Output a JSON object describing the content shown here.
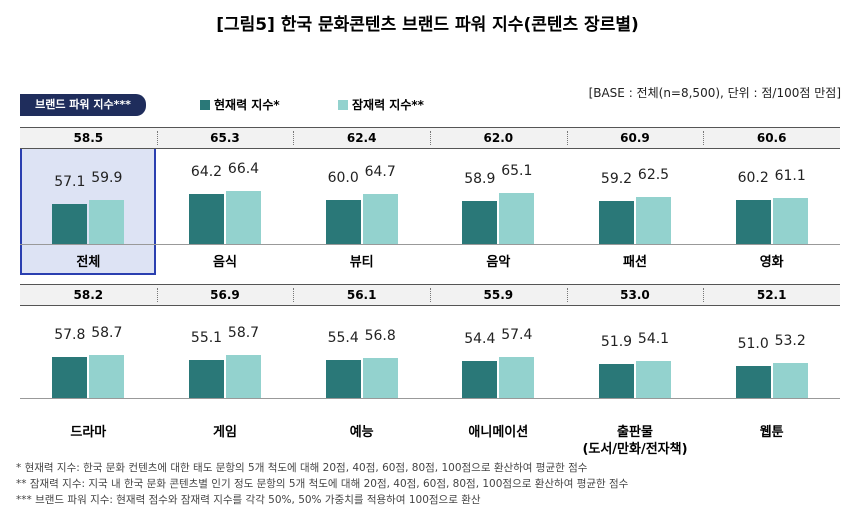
{
  "chart_data": {
    "type": "bar",
    "title": "[그림5] 한국 문화콘텐츠 브랜드 파워 지수(콘텐츠 장르별)",
    "note": "[BASE : 전체(n=8,500), 단위 : 점/100점 만점]",
    "categories": [
      "전체",
      "음식",
      "뷰티",
      "음악",
      "패션",
      "영화",
      "드라마",
      "게임",
      "예능",
      "애니메이션",
      "출판물\n(도서/만화/전자책)",
      "웹툰"
    ],
    "index": {
      "name": "브랜드 파워 지수***",
      "values": [
        58.5,
        65.3,
        62.4,
        62.0,
        60.9,
        60.6,
        58.2,
        56.9,
        56.1,
        55.9,
        53.0,
        52.1
      ],
      "value_labels": [
        "58.5",
        "65.3",
        "62.4",
        "62.0",
        "60.9",
        "60.6",
        "58.2",
        "56.9",
        "56.1",
        "55.9",
        "53.0",
        "52.1"
      ]
    },
    "series": [
      {
        "name": "현재력 지수*",
        "color": "#2a7878",
        "values": [
          57.1,
          64.2,
          60.0,
          58.9,
          59.2,
          60.2,
          57.8,
          55.1,
          55.4,
          54.4,
          51.9,
          51.0
        ],
        "value_labels": [
          "57.1",
          "64.2",
          "60.0",
          "58.9",
          "59.2",
          "60.2",
          "57.8",
          "55.1",
          "55.4",
          "54.4",
          "51.9",
          "51.0"
        ]
      },
      {
        "name": "잠재력 지수**",
        "color": "#93d2ce",
        "values": [
          59.9,
          66.4,
          64.7,
          65.1,
          62.5,
          61.1,
          58.7,
          58.7,
          56.8,
          57.4,
          54.1,
          53.2
        ],
        "value_labels": [
          "59.9",
          "66.4",
          "64.7",
          "65.1",
          "62.5",
          "61.1",
          "58.7",
          "58.7",
          "56.8",
          "57.4",
          "54.1",
          "53.2"
        ]
      }
    ],
    "footnotes": [
      "* 현재력 지수: 한국 문화 컨텐츠에 대한 태도 문항의 5개 척도에 대해 20점, 40점, 60점, 80점, 100점으로 환산하여 평균한 점수",
      "** 잠재력 지수: 지국 내 한국 문화 콘텐츠별 인기 정도 문항의 5개 척도에 대해 20점, 40점, 60점, 80점, 100점으로 환산하여 평균한 점수",
      "*** 브랜드 파워 지수: 현재력 점수와 잠재력 지수를 각각 50%, 50% 가중치를 적용하여 100점으로 환산"
    ]
  }
}
